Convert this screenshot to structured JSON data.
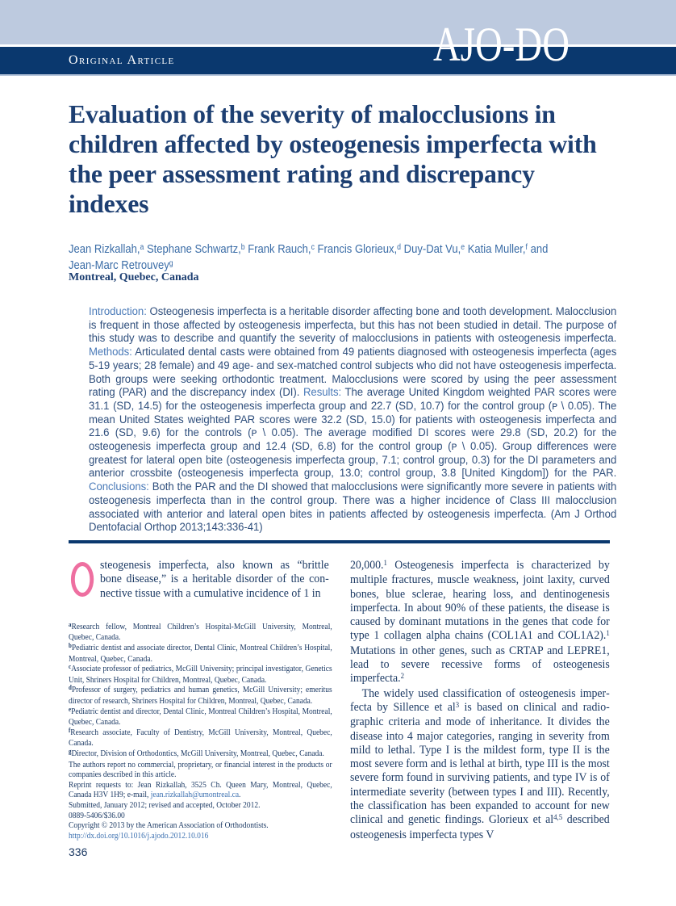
{
  "colors": {
    "navy_band": "#0a386e",
    "light_blue_band": "#bdcadf",
    "title_text": "#1d3f72",
    "body_text": "#1c3a64",
    "abstract_label": "#4a7ab8",
    "abstract_text": "#2e4e7c",
    "authors_text": "#3b6da7",
    "dropcap_pink": "#ee6fa0",
    "link_blue": "#3a6fb0"
  },
  "masthead": {
    "section_label": "Original Article",
    "logo": "AJO-DO"
  },
  "article": {
    "title": "Evaluation of the severity of malocclusions in children affected by osteogenesis imperfecta with the peer assessment rating and discrepancy indexes",
    "authors": [
      {
        "name": "Jean Rizkallah,",
        "sup": "a"
      },
      {
        "name": "Stephane Schwartz,",
        "sup": "b"
      },
      {
        "name": "Frank Rauch,",
        "sup": "c"
      },
      {
        "name": "Francis Glorieux,",
        "sup": "d"
      },
      {
        "name": "Duy-Dat Vu,",
        "sup": "e"
      },
      {
        "name": "Katia Muller,",
        "sup": "f"
      },
      {
        "name": "and Jean-Marc Retrouvey",
        "sup": "g"
      }
    ],
    "location": "Montreal, Quebec, Canada"
  },
  "abstract": [
    {
      "t": "label",
      "s": "Introduction:"
    },
    {
      "t": "text",
      "s": " Osteogenesis imperfecta is a heritable disorder affecting bone and tooth development. Malocclu­sion is frequent in those affected by osteogenesis imperfecta, but this has not been studied in detail. The purpose of this study was to describe and quantify the severity of malocclusions in patients with osteogenesis imperfecta. "
    },
    {
      "t": "label",
      "s": "Methods:"
    },
    {
      "t": "text",
      "s": " Articulated dental casts were obtained from 49 patients diagnosed with osteogenesis imperfecta (ages 5-19 years; 28 female) and 49 age- and sex-matched control subjects who did not have osteogenesis imperfecta. Both groups were seeking orthodontic treatment. Malocclusions were scored by using the peer assessment rating (PAR) and the discrepancy index (DI). "
    },
    {
      "t": "label",
      "s": "Results:"
    },
    {
      "t": "text",
      "s": " The average United Kingdom weighted PAR scores were 31.1 (SD, 14.5) for the osteogenesis imperfecta group and 22.7 (SD, 10.7) for the control group (ᴘ \\ 0.05). The mean United States weighted PAR scores were 32.2 (SD, 15.0) for patients with osteogenesis imperfecta and 21.6 (SD, 9.6) for the controls (ᴘ \\ 0.05). The average modified DI scores were 29.8 (SD, 20.2) for the osteogenesis imperfecta group and 12.4 (SD, 6.8) for the control group (ᴘ \\ 0.05). Group differences were greatest for lateral open bite (osteogenesis imperfecta group, 7.1; control group, 0.3) for the DI parameters and anterior crossbite (osteogenesis imperfecta group, 13.0; control group, 3.8 [United Kingdom]) for the PAR. "
    },
    {
      "t": "label",
      "s": "Conclusions:"
    },
    {
      "t": "text",
      "s": " Both the PAR and the DI showed that malocclusions were significantly more severe in patients with osteogenesis imperfecta than in the control group. There was a higher incidence of Class III malocclusion associated with anterior and lateral open bites in patients affected by osteogenesis imperfecta. (Am J Orthod Dentofacial Orthop 2013;143:336-41)"
    }
  ],
  "body": {
    "left_paragraph": [
      {
        "t": "text",
        "s": "steogenesis imperfecta, also known as “brittle bone disease,” is a heritable disorder of the con­nective tissue with a cumulative incidence of 1 in"
      }
    ],
    "right_col": {
      "0": [
        {
          "t": "text",
          "s": "20,000."
        },
        {
          "t": "sup",
          "s": "1"
        },
        {
          "t": "text",
          "s": " Osteogenesis imperfecta is characterized by multiple fractures, muscle weakness, joint laxity, curved bones, blue sclerae, hearing loss, and dentinogenesis imperfecta. In about 90% of these patients, the disease is caused by dominant mutations in the genes that code for type 1 collagen alpha chains (COL1A1 and COL1A2)."
        },
        {
          "t": "sup",
          "s": "1"
        },
        {
          "t": "text",
          "s": " Mutations in other genes, such as CRTAP and LEPRE1, lead to severe recessive forms of osteogen­esis imperfecta."
        },
        {
          "t": "sup",
          "s": "2"
        }
      ],
      "1": [
        {
          "t": "text",
          "s": "The widely used classification of osteogenesis imper­fecta by Sillence et al"
        },
        {
          "t": "sup",
          "s": "3"
        },
        {
          "t": "text",
          "s": " is based on clinical and radio­graphic criteria and mode of inheritance. It divides the disease into 4 major categories, ranging in severity from mild to lethal. Type I is the mildest form, type II is the most severe form and is lethal at birth, type III is the most severe form found in surviving patients, and type IV is of intermediate severity (between types I and III). Recently, the classification has been expanded to account for new clinical and genetic findings. Glori­eux et al"
        },
        {
          "t": "sup",
          "s": "4,5"
        },
        {
          "t": "text",
          "s": " described osteogenesis imperfecta types V"
        }
      ]
    }
  },
  "footnotes": [
    [
      {
        "t": "sup",
        "s": "a"
      },
      {
        "t": "text",
        "s": "Research fellow, Montreal Children’s Hospital-McGill University, Montreal, Quebec, Canada."
      }
    ],
    [
      {
        "t": "sup",
        "s": "b"
      },
      {
        "t": "text",
        "s": "Pediatric dentist and associate director, Dental Clinic, Montreal Children’s Hospital, Montreal, Quebec, Canada."
      }
    ],
    [
      {
        "t": "sup",
        "s": "c"
      },
      {
        "t": "text",
        "s": "Associate professor of pediatrics, McGill University; principal investigator, Genetics Unit, Shriners Hospital for Children, Montreal, Quebec, Canada."
      }
    ],
    [
      {
        "t": "sup",
        "s": "d"
      },
      {
        "t": "text",
        "s": "Professor of surgery, pediatrics and human genetics, McGill University; emeritus director of research, Shriners Hospital for Children, Montreal, Quebec, Canada."
      }
    ],
    [
      {
        "t": "sup",
        "s": "e"
      },
      {
        "t": "text",
        "s": "Pediatric dentist and director, Dental Clinic, Montreal Children’s Hospital, Montreal, Quebec, Canada."
      }
    ],
    [
      {
        "t": "sup",
        "s": "f"
      },
      {
        "t": "text",
        "s": "Research associate, Faculty of Dentistry, McGill University, Montreal, Quebec, Canada."
      }
    ],
    [
      {
        "t": "sup",
        "s": "g"
      },
      {
        "t": "text",
        "s": "Director, Division of Orthodontics, McGill University, Montreal, Quebec, Canada."
      }
    ],
    [
      {
        "t": "text",
        "s": "The authors report no commercial, proprietary, or financial interest in the prod­ucts or companies described in this article."
      }
    ],
    [
      {
        "t": "text",
        "s": "Reprint requests to: Jean Rizkallah, 3525 Ch. Queen Mary, Montreal, Quebec, Canada H3V 1H9; e-mail, "
      },
      {
        "t": "link",
        "s": "jean.rizkallah@umontreal.ca"
      },
      {
        "t": "text",
        "s": "."
      }
    ],
    [
      {
        "t": "text",
        "s": "Submitted, January 2012; revised and accepted, October 2012."
      }
    ],
    [
      {
        "t": "text",
        "s": "0889-5406/$36.00"
      }
    ],
    [
      {
        "t": "text",
        "s": "Copyright © 2013 by the American Association of Orthodontists."
      }
    ],
    [
      {
        "t": "link",
        "s": "http://dx.doi.org/10.1016/j.ajodo.2012.10.016"
      }
    ]
  ],
  "page_number": "336"
}
